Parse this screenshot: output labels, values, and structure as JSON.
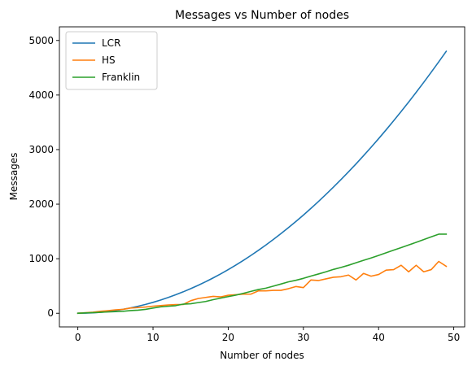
{
  "chart_data": {
    "type": "line",
    "title": "Messages vs Number of nodes",
    "xlabel": "Number of nodes",
    "ylabel": "Messages",
    "xlim": [
      -2.45,
      51.45
    ],
    "ylim": [
      -250,
      5250
    ],
    "xticks": [
      0,
      10,
      20,
      30,
      40,
      50
    ],
    "yticks": [
      0,
      1000,
      2000,
      3000,
      4000,
      5000
    ],
    "grid": false,
    "legend": "top-left",
    "series": [
      {
        "name": "LCR",
        "color": "#1f77b4",
        "x": [
          0,
          1,
          2,
          3,
          4,
          5,
          6,
          7,
          8,
          9,
          10,
          11,
          12,
          13,
          14,
          15,
          16,
          17,
          18,
          19,
          20,
          21,
          22,
          23,
          24,
          25,
          26,
          27,
          28,
          29,
          30,
          31,
          32,
          33,
          34,
          35,
          36,
          37,
          38,
          39,
          40,
          41,
          42,
          43,
          44,
          45,
          46,
          47,
          48,
          49
        ],
        "y": [
          0,
          2,
          8,
          18,
          32,
          50,
          72,
          98,
          128,
          162,
          200,
          242,
          288,
          338,
          392,
          450,
          512,
          578,
          648,
          722,
          800,
          882,
          968,
          1058,
          1152,
          1250,
          1352,
          1458,
          1568,
          1682,
          1800,
          1922,
          2048,
          2178,
          2312,
          2450,
          2592,
          2738,
          2888,
          3042,
          3200,
          3362,
          3528,
          3698,
          3872,
          4050,
          4232,
          4418,
          4608,
          4802
        ]
      },
      {
        "name": "HS",
        "color": "#ff7f0e",
        "x": [
          0,
          1,
          2,
          3,
          4,
          5,
          6,
          7,
          8,
          9,
          10,
          11,
          12,
          13,
          14,
          15,
          16,
          17,
          18,
          19,
          20,
          21,
          22,
          23,
          24,
          25,
          26,
          27,
          28,
          29,
          30,
          31,
          32,
          33,
          34,
          35,
          36,
          37,
          38,
          39,
          40,
          41,
          42,
          43,
          44,
          45,
          46,
          47,
          48,
          49
        ],
        "y": [
          0,
          10,
          20,
          36,
          48,
          62,
          72,
          96,
          104,
          114,
          130,
          140,
          152,
          160,
          160,
          230,
          270,
          290,
          310,
          300,
          330,
          340,
          350,
          350,
          410,
          410,
          420,
          420,
          450,
          490,
          470,
          610,
          600,
          630,
          660,
          670,
          700,
          610,
          730,
          680,
          710,
          790,
          800,
          880,
          760,
          880,
          760,
          800,
          950,
          860
        ]
      },
      {
        "name": "Franklin",
        "color": "#2ca02c",
        "x": [
          0,
          1,
          2,
          3,
          4,
          5,
          6,
          7,
          8,
          9,
          10,
          11,
          12,
          13,
          14,
          15,
          16,
          17,
          18,
          19,
          20,
          21,
          22,
          23,
          24,
          25,
          26,
          27,
          28,
          29,
          30,
          31,
          32,
          33,
          34,
          35,
          36,
          37,
          38,
          39,
          40,
          41,
          42,
          43,
          44,
          45,
          46,
          47,
          48,
          49
        ],
        "y": [
          0,
          6,
          12,
          18,
          24,
          30,
          36,
          49,
          56,
          71,
          95,
          117,
          128,
          139,
          167,
          174,
          195,
          216,
          249,
          277,
          305,
          332,
          365,
          400,
          435,
          460,
          497,
          535,
          575,
          604,
          640,
          681,
          720,
          760,
          804,
          840,
          880,
          926,
          970,
          1014,
          1060,
          1108,
          1156,
          1204,
          1252,
          1300,
          1350,
          1400,
          1450,
          1450
        ]
      }
    ]
  }
}
